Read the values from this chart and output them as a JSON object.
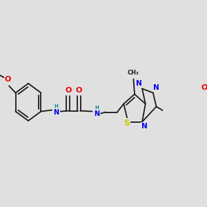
{
  "bg": "#e0e0e0",
  "bc": "#1a1a1a",
  "lw": 1.3,
  "fs": 6.5,
  "colors": {
    "N": "#0000ee",
    "O": "#ee0000",
    "S": "#cccc00",
    "NH": "#008888",
    "C": "#1a1a1a"
  },
  "xlim": [
    0,
    300
  ],
  "ylim": [
    0,
    300
  ]
}
